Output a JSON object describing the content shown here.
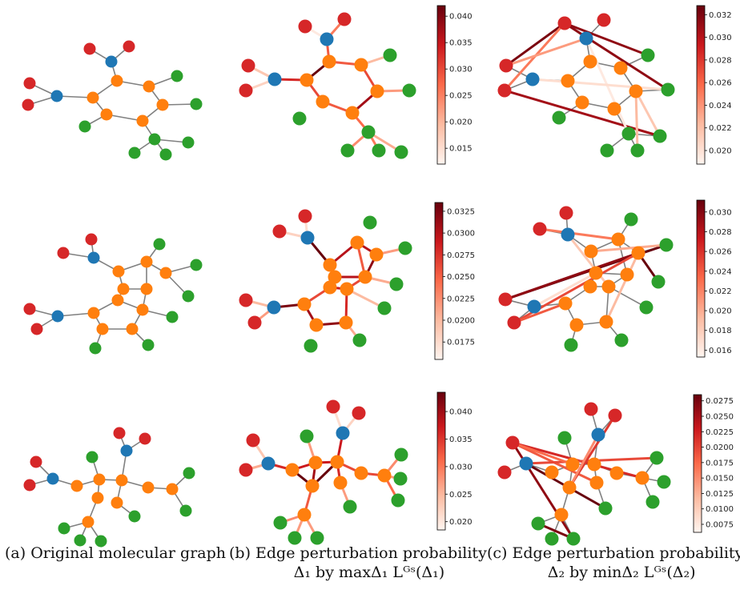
{
  "captions": {
    "a": "(a) Original molecular graph",
    "b_line1": "(b) Edge perturbation probability",
    "b_line2": "Δ₁ by maxΔ₁ Lᴳˢ(Δ₁)",
    "c_line1": "(c) Edge perturbation probability",
    "c_line2": "Δ₂ by minΔ₂ Lᴳˢ(Δ₂)"
  },
  "colors": {
    "carbon": "#ff7f0e",
    "nitrogen": "#1f77b4",
    "oxygen": "#d62728",
    "other": "#2ca02c",
    "bond": "#808080",
    "cmap_low": "#fff5f0",
    "cmap_mid": "#fb6a4a",
    "cmap_high": "#67000d"
  },
  "colorbars": [
    {
      "ticks": [
        "0.040",
        "0.035",
        "0.030",
        "0.025",
        "0.020",
        "0.015"
      ],
      "vmin": 0.012,
      "vmax": 0.042,
      "values": [
        0.04,
        0.035,
        0.03,
        0.025,
        0.02,
        0.015
      ]
    },
    {
      "ticks": [
        "0.032",
        "0.030",
        "0.028",
        "0.026",
        "0.024",
        "0.022",
        "0.020"
      ],
      "vmin": 0.0188,
      "vmax": 0.0328,
      "values": [
        0.032,
        0.03,
        0.028,
        0.026,
        0.024,
        0.022,
        0.02
      ]
    },
    {
      "ticks": [
        "0.0325",
        "0.0300",
        "0.0275",
        "0.0250",
        "0.0225",
        "0.0200",
        "0.0175"
      ],
      "vmin": 0.0155,
      "vmax": 0.0335,
      "values": [
        0.0325,
        0.03,
        0.0275,
        0.025,
        0.0225,
        0.02,
        0.0175
      ]
    },
    {
      "ticks": [
        "0.030",
        "0.028",
        "0.026",
        "0.024",
        "0.022",
        "0.020",
        "0.018",
        "0.016"
      ],
      "vmin": 0.0153,
      "vmax": 0.0312,
      "values": [
        0.03,
        0.028,
        0.026,
        0.024,
        0.022,
        0.02,
        0.018,
        0.016
      ]
    },
    {
      "ticks": [
        "0.040",
        "0.035",
        "0.030",
        "0.025",
        "0.020"
      ],
      "vmin": 0.0185,
      "vmax": 0.0435,
      "values": [
        0.04,
        0.035,
        0.03,
        0.025,
        0.02
      ]
    },
    {
      "ticks": [
        "0.0275",
        "0.0250",
        "0.0225",
        "0.0200",
        "0.0175",
        "0.0150",
        "0.0125",
        "0.0100",
        "0.0075"
      ],
      "vmin": 0.0062,
      "vmax": 0.0285,
      "values": [
        0.0275,
        0.025,
        0.0225,
        0.02,
        0.0175,
        0.015,
        0.0125,
        0.01,
        0.0075
      ]
    }
  ]
}
